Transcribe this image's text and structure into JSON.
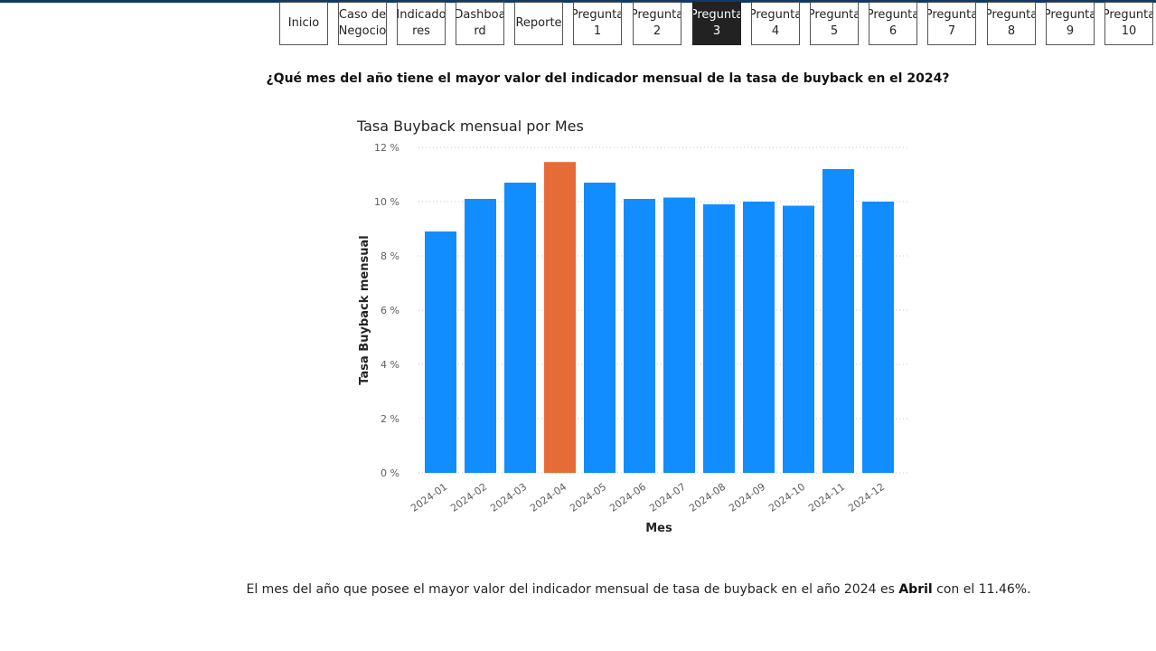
{
  "nav": {
    "buttons": [
      {
        "label": "Inicio",
        "active": false
      },
      {
        "label": "Caso de\nNegocio",
        "active": false
      },
      {
        "label": "Indicado\nres",
        "active": false
      },
      {
        "label": "Dashboa\nrd",
        "active": false
      },
      {
        "label": "Reporte",
        "active": false
      },
      {
        "label": "Pregunta\n1",
        "active": false
      },
      {
        "label": "Pregunta\n2",
        "active": false
      },
      {
        "label": "Pregunta\n3",
        "active": true
      },
      {
        "label": "Pregunta\n4",
        "active": false
      },
      {
        "label": "Pregunta\n5",
        "active": false
      },
      {
        "label": "Pregunta\n6",
        "active": false
      },
      {
        "label": "Pregunta\n7",
        "active": false
      },
      {
        "label": "Pregunta\n8",
        "active": false
      },
      {
        "label": "Pregunta\n9",
        "active": false
      },
      {
        "label": "Pregunta\n10",
        "active": false
      }
    ]
  },
  "question": "¿Qué mes del año tiene el mayor valor del indicador mensual de la tasa de buyback en el 2024?",
  "chart_data": {
    "type": "bar",
    "title": "Tasa Buyback mensual por Mes",
    "xlabel": "Mes",
    "ylabel": "Tasa Buyback mensual",
    "categories": [
      "2024-01",
      "2024-02",
      "2024-03",
      "2024-04",
      "2024-05",
      "2024-06",
      "2024-07",
      "2024-08",
      "2024-09",
      "2024-10",
      "2024-11",
      "2024-12"
    ],
    "values": [
      8.9,
      10.1,
      10.7,
      11.46,
      10.7,
      10.1,
      10.15,
      9.9,
      10.0,
      9.85,
      11.2,
      10.0
    ],
    "ylim": [
      0,
      12
    ],
    "yticks": [
      0,
      2,
      4,
      6,
      8,
      10,
      12
    ],
    "ytick_labels": [
      "0 %",
      "2 %",
      "4 %",
      "6 %",
      "8 %",
      "10 %",
      "12 %"
    ],
    "highlight_index": 3,
    "colors": {
      "bar": "#118dff",
      "highlight": "#e66c37",
      "grid": "#c8c6c4"
    },
    "grid": true
  },
  "answer": {
    "prefix": "El mes del año que posee el mayor valor del indicador mensual de tasa de buyback en el año 2024 es ",
    "highlight": "Abril",
    "suffix": " con el 11.46%."
  }
}
